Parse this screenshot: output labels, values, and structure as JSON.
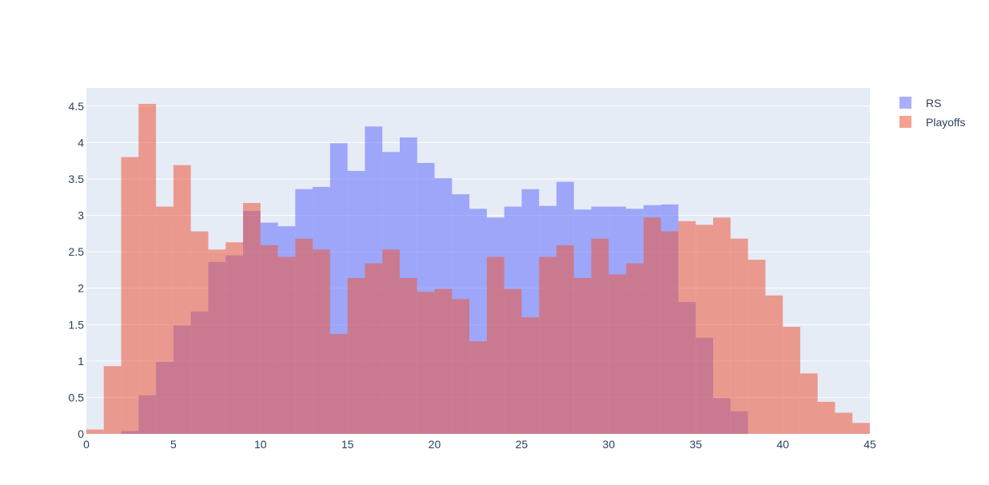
{
  "chart_data": {
    "type": "bar",
    "bar_mode": "overlay",
    "bin_width": 1,
    "xlim": [
      0,
      45
    ],
    "ylim": [
      0,
      4.75
    ],
    "x_ticks": [
      "0",
      "5",
      "10",
      "15",
      "20",
      "25",
      "30",
      "35",
      "40",
      "45"
    ],
    "y_ticks": [
      "0",
      "0.5",
      "1",
      "1.5",
      "2",
      "2.5",
      "3",
      "3.5",
      "4",
      "4.5"
    ],
    "grid": true,
    "legend_position": "top-right",
    "plot_background": "#e5ecf6",
    "series": [
      {
        "name": "RS",
        "color": "#636efa",
        "opacity": 0.55,
        "bin_start": 2,
        "values": [
          0.04,
          0.53,
          0.99,
          1.49,
          1.68,
          2.36,
          2.45,
          3.06,
          2.9,
          2.85,
          3.36,
          3.39,
          3.99,
          3.61,
          4.22,
          3.87,
          4.07,
          3.72,
          3.51,
          3.29,
          3.09,
          2.97,
          3.12,
          3.36,
          3.13,
          3.46,
          3.08,
          3.12,
          3.12,
          3.09,
          3.14,
          3.15,
          1.81,
          1.32,
          0.49,
          0.31
        ]
      },
      {
        "name": "Playoffs",
        "color": "#ef553b",
        "opacity": 0.55,
        "bin_start": 0,
        "values": [
          0.06,
          0.93,
          3.8,
          4.53,
          3.12,
          3.69,
          2.78,
          2.53,
          2.63,
          3.17,
          2.59,
          2.43,
          2.68,
          2.53,
          1.37,
          2.14,
          2.34,
          2.53,
          2.14,
          1.95,
          1.99,
          1.85,
          1.27,
          2.43,
          1.99,
          1.6,
          2.43,
          2.59,
          2.14,
          2.68,
          2.19,
          2.34,
          2.97,
          2.78,
          2.92,
          2.87,
          2.97,
          2.68,
          2.39,
          1.9,
          1.47,
          0.83,
          0.44,
          0.29,
          0.15
        ]
      }
    ]
  },
  "legend": {
    "items": [
      {
        "label": "RS",
        "color": "#636efa"
      },
      {
        "label": "Playoffs",
        "color": "#ef553b"
      }
    ]
  }
}
